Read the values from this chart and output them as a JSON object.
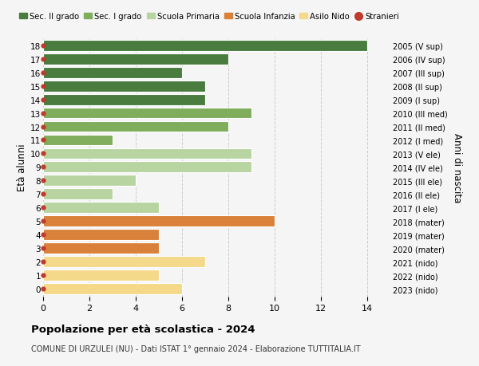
{
  "ages": [
    18,
    17,
    16,
    15,
    14,
    13,
    12,
    11,
    10,
    9,
    8,
    7,
    6,
    5,
    4,
    3,
    2,
    1,
    0
  ],
  "values": [
    14,
    8,
    6,
    7,
    7,
    9,
    8,
    3,
    9,
    9,
    4,
    3,
    5,
    10,
    5,
    5,
    7,
    5,
    6
  ],
  "right_labels": [
    "2005 (V sup)",
    "2006 (IV sup)",
    "2007 (III sup)",
    "2008 (II sup)",
    "2009 (I sup)",
    "2010 (III med)",
    "2011 (II med)",
    "2012 (I med)",
    "2013 (V ele)",
    "2014 (IV ele)",
    "2015 (III ele)",
    "2016 (II ele)",
    "2017 (I ele)",
    "2018 (mater)",
    "2019 (mater)",
    "2020 (mater)",
    "2021 (nido)",
    "2022 (nido)",
    "2023 (nido)"
  ],
  "bar_colors": [
    "#4a7c3f",
    "#4a7c3f",
    "#4a7c3f",
    "#4a7c3f",
    "#4a7c3f",
    "#7fad5b",
    "#7fad5b",
    "#7fad5b",
    "#b8d4a0",
    "#b8d4a0",
    "#b8d4a0",
    "#b8d4a0",
    "#b8d4a0",
    "#d9813a",
    "#d9813a",
    "#d9813a",
    "#f5d98a",
    "#f5d98a",
    "#f5d98a"
  ],
  "dot_color": "#c0392b",
  "legend_labels": [
    "Sec. II grado",
    "Sec. I grado",
    "Scuola Primaria",
    "Scuola Infanzia",
    "Asilo Nido",
    "Stranieri"
  ],
  "legend_colors": [
    "#4a7c3f",
    "#7fad5b",
    "#b8d4a0",
    "#d9813a",
    "#f5d98a",
    "#c0392b"
  ],
  "title_main": "Popolazione per età scolastica - 2024",
  "title_sub": "COMUNE DI URZULEI (NU) - Dati ISTAT 1° gennaio 2024 - Elaborazione TUTTITALIA.IT",
  "ylabel_left": "Età alunni",
  "ylabel_right": "Anni di nascita",
  "xlim": [
    0,
    15
  ],
  "bg_color": "#f5f5f5",
  "bar_edge_color": "white",
  "grid_color": "#cccccc",
  "bar_height": 0.82
}
